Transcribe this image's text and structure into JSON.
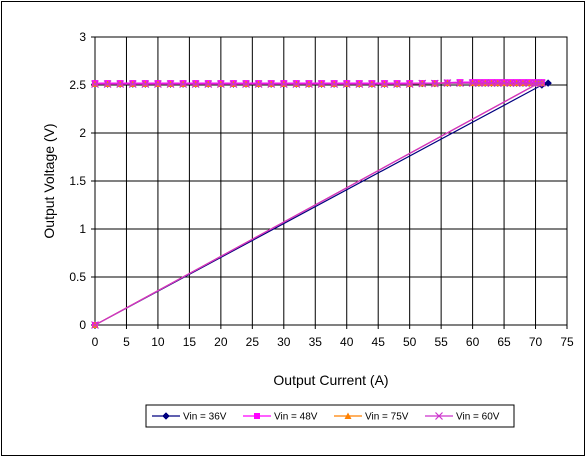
{
  "chart_data": {
    "type": "line",
    "title": "",
    "xlabel": "Output Current (A)",
    "ylabel": "Output Voltage (V)",
    "xlim": [
      0,
      75
    ],
    "ylim": [
      0,
      3
    ],
    "xticks": [
      0,
      5,
      10,
      15,
      20,
      25,
      30,
      35,
      40,
      45,
      50,
      55,
      60,
      65,
      70,
      75
    ],
    "yticks": [
      0,
      0.5,
      1,
      1.5,
      2,
      2.5,
      3
    ],
    "xtick_labels": [
      "0",
      "5",
      "10",
      "15",
      "20",
      "25",
      "30",
      "35",
      "40",
      "45",
      "50",
      "55",
      "60",
      "65",
      "70",
      "75"
    ],
    "ytick_labels": [
      "0",
      "0.5",
      "1",
      "1.5",
      "2",
      "2.5",
      "3"
    ],
    "grid": true,
    "legend_position": "bottom",
    "series": [
      {
        "name": "Vin = 36V",
        "color": "#000080",
        "marker": "diamond",
        "x": [
          0,
          2,
          4,
          6,
          8,
          10,
          12,
          14,
          16,
          18,
          20,
          22,
          24,
          26,
          28,
          30,
          32,
          34,
          36,
          38,
          40,
          42,
          44,
          46,
          48,
          50,
          52,
          54,
          56,
          58,
          60,
          61,
          62,
          63,
          64,
          65,
          66,
          67,
          68,
          69,
          70,
          71,
          72,
          71,
          0
        ],
        "y": [
          2.51,
          2.51,
          2.51,
          2.51,
          2.51,
          2.51,
          2.51,
          2.51,
          2.51,
          2.51,
          2.51,
          2.51,
          2.51,
          2.51,
          2.51,
          2.51,
          2.51,
          2.51,
          2.51,
          2.51,
          2.51,
          2.51,
          2.51,
          2.51,
          2.51,
          2.51,
          2.515,
          2.515,
          2.52,
          2.52,
          2.52,
          2.52,
          2.52,
          2.52,
          2.52,
          2.52,
          2.52,
          2.52,
          2.52,
          2.52,
          2.52,
          2.52,
          2.52,
          2.5,
          0
        ]
      },
      {
        "name": "Vin = 48V",
        "color": "#FF00FF",
        "marker": "square",
        "x": [
          0,
          2,
          4,
          6,
          8,
          10,
          12,
          14,
          16,
          18,
          20,
          22,
          24,
          26,
          28,
          30,
          32,
          34,
          36,
          38,
          40,
          42,
          44,
          46,
          48,
          50,
          52,
          54,
          56,
          58,
          60,
          61,
          62,
          63,
          64,
          65,
          66,
          67,
          68,
          69,
          70,
          71,
          70.5,
          0
        ],
        "y": [
          2.52,
          2.52,
          2.52,
          2.52,
          2.52,
          2.52,
          2.52,
          2.52,
          2.52,
          2.52,
          2.52,
          2.52,
          2.52,
          2.52,
          2.52,
          2.52,
          2.52,
          2.52,
          2.52,
          2.52,
          2.52,
          2.52,
          2.52,
          2.52,
          2.52,
          2.52,
          2.52,
          2.52,
          2.525,
          2.53,
          2.53,
          2.53,
          2.53,
          2.53,
          2.53,
          2.53,
          2.53,
          2.53,
          2.53,
          2.53,
          2.53,
          2.53,
          2.52,
          0
        ]
      },
      {
        "name": "Vin = 75V",
        "color": "#FF8000",
        "marker": "triangle",
        "x": [
          0,
          2,
          4,
          6,
          8,
          10,
          12,
          14,
          16,
          18,
          20,
          22,
          24,
          26,
          28,
          30,
          32,
          34,
          36,
          38,
          40,
          42,
          44,
          46,
          48,
          50,
          52,
          54,
          56,
          58,
          60,
          61,
          62,
          63,
          64,
          65,
          66,
          67,
          68,
          69,
          70,
          71,
          70.5,
          0
        ],
        "y": [
          2.51,
          2.51,
          2.51,
          2.51,
          2.51,
          2.51,
          2.51,
          2.51,
          2.51,
          2.51,
          2.51,
          2.51,
          2.51,
          2.51,
          2.51,
          2.51,
          2.51,
          2.51,
          2.51,
          2.51,
          2.51,
          2.51,
          2.51,
          2.51,
          2.51,
          2.51,
          2.515,
          2.515,
          2.52,
          2.52,
          2.52,
          2.52,
          2.52,
          2.52,
          2.52,
          2.52,
          2.52,
          2.52,
          2.52,
          2.52,
          2.52,
          2.52,
          2.52,
          0
        ]
      },
      {
        "name": "Vin = 60V",
        "color": "#CC33CC",
        "marker": "x",
        "x": [
          0,
          2,
          4,
          6,
          8,
          10,
          12,
          14,
          16,
          18,
          20,
          22,
          24,
          26,
          28,
          30,
          32,
          34,
          36,
          38,
          40,
          42,
          44,
          46,
          48,
          50,
          52,
          54,
          56,
          58,
          60,
          61,
          62,
          63,
          64,
          65,
          66,
          67,
          68,
          69,
          70,
          71,
          70.5,
          0
        ],
        "y": [
          2.51,
          2.51,
          2.51,
          2.51,
          2.51,
          2.51,
          2.51,
          2.51,
          2.51,
          2.51,
          2.51,
          2.51,
          2.51,
          2.51,
          2.51,
          2.51,
          2.51,
          2.51,
          2.51,
          2.51,
          2.51,
          2.51,
          2.51,
          2.51,
          2.51,
          2.51,
          2.515,
          2.515,
          2.52,
          2.52,
          2.52,
          2.52,
          2.52,
          2.52,
          2.52,
          2.52,
          2.52,
          2.52,
          2.52,
          2.52,
          2.52,
          2.52,
          2.52,
          0
        ]
      }
    ]
  }
}
